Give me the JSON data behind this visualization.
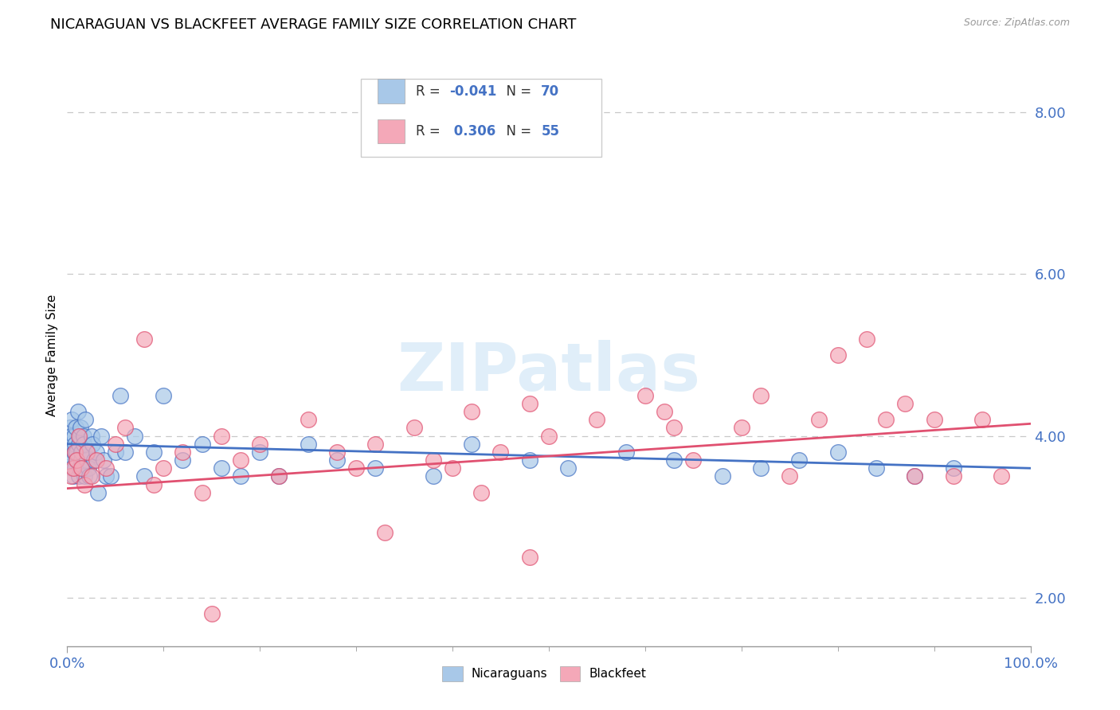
{
  "title": "NICARAGUAN VS BLACKFEET AVERAGE FAMILY SIZE CORRELATION CHART",
  "source": "Source: ZipAtlas.com",
  "ylabel": "Average Family Size",
  "xlim": [
    0,
    1
  ],
  "ylim": [
    1.4,
    8.6
  ],
  "yticks": [
    2.0,
    4.0,
    6.0,
    8.0
  ],
  "xticks": [
    0.0,
    1.0
  ],
  "xticklabels": [
    "0.0%",
    "100.0%"
  ],
  "blue_R": -0.041,
  "blue_N": 70,
  "pink_R": 0.306,
  "pink_N": 55,
  "blue_color": "#a8c8e8",
  "pink_color": "#f4a8b8",
  "blue_line_color": "#4472c4",
  "pink_line_color": "#e05070",
  "tick_label_color": "#4472c4",
  "grid_color": "#c8c8c8",
  "background_color": "#ffffff",
  "watermark": "ZIPatlas",
  "title_fontsize": 13,
  "blue_scatter_x": [
    0.002,
    0.003,
    0.003,
    0.004,
    0.004,
    0.005,
    0.005,
    0.006,
    0.007,
    0.007,
    0.008,
    0.008,
    0.009,
    0.01,
    0.01,
    0.011,
    0.012,
    0.012,
    0.013,
    0.013,
    0.014,
    0.015,
    0.015,
    0.016,
    0.017,
    0.017,
    0.018,
    0.019,
    0.02,
    0.021,
    0.022,
    0.023,
    0.025,
    0.026,
    0.028,
    0.03,
    0.032,
    0.035,
    0.038,
    0.04,
    0.045,
    0.05,
    0.055,
    0.06,
    0.07,
    0.08,
    0.09,
    0.1,
    0.12,
    0.14,
    0.16,
    0.18,
    0.2,
    0.22,
    0.25,
    0.28,
    0.32,
    0.38,
    0.42,
    0.48,
    0.52,
    0.58,
    0.63,
    0.68,
    0.72,
    0.76,
    0.8,
    0.84,
    0.88,
    0.92
  ],
  "blue_scatter_y": [
    3.8,
    4.1,
    3.9,
    4.0,
    3.7,
    4.2,
    3.6,
    3.5,
    3.8,
    4.0,
    3.9,
    3.6,
    4.1,
    3.7,
    3.8,
    4.3,
    3.5,
    3.9,
    4.0,
    3.6,
    4.1,
    3.7,
    3.8,
    3.6,
    4.0,
    3.9,
    3.5,
    4.2,
    3.7,
    3.8,
    3.6,
    3.5,
    4.0,
    3.9,
    3.7,
    3.8,
    3.3,
    4.0,
    3.7,
    3.5,
    3.5,
    3.8,
    4.5,
    3.8,
    4.0,
    3.5,
    3.8,
    4.5,
    3.7,
    3.9,
    3.6,
    3.5,
    3.8,
    3.5,
    3.9,
    3.7,
    3.6,
    3.5,
    3.9,
    3.7,
    3.6,
    3.8,
    3.7,
    3.5,
    3.6,
    3.7,
    3.8,
    3.6,
    3.5,
    3.6
  ],
  "pink_scatter_x": [
    0.004,
    0.006,
    0.008,
    0.01,
    0.012,
    0.015,
    0.018,
    0.02,
    0.025,
    0.03,
    0.04,
    0.05,
    0.06,
    0.08,
    0.09,
    0.1,
    0.12,
    0.14,
    0.16,
    0.18,
    0.2,
    0.22,
    0.25,
    0.28,
    0.3,
    0.32,
    0.36,
    0.38,
    0.4,
    0.42,
    0.45,
    0.48,
    0.5,
    0.55,
    0.6,
    0.62,
    0.65,
    0.7,
    0.72,
    0.75,
    0.78,
    0.8,
    0.83,
    0.85,
    0.87,
    0.88,
    0.9,
    0.92,
    0.95,
    0.97,
    0.15,
    0.33,
    0.48,
    0.63,
    0.43
  ],
  "pink_scatter_y": [
    3.5,
    3.6,
    3.8,
    3.7,
    4.0,
    3.6,
    3.4,
    3.8,
    3.5,
    3.7,
    3.6,
    3.9,
    4.1,
    5.2,
    3.4,
    3.6,
    3.8,
    3.3,
    4.0,
    3.7,
    3.9,
    3.5,
    4.2,
    3.8,
    3.6,
    3.9,
    4.1,
    3.7,
    3.6,
    4.3,
    3.8,
    4.4,
    4.0,
    4.2,
    4.5,
    4.3,
    3.7,
    4.1,
    4.5,
    3.5,
    4.2,
    5.0,
    5.2,
    4.2,
    4.4,
    3.5,
    4.2,
    3.5,
    4.2,
    3.5,
    1.8,
    2.8,
    2.5,
    4.1,
    3.3
  ]
}
